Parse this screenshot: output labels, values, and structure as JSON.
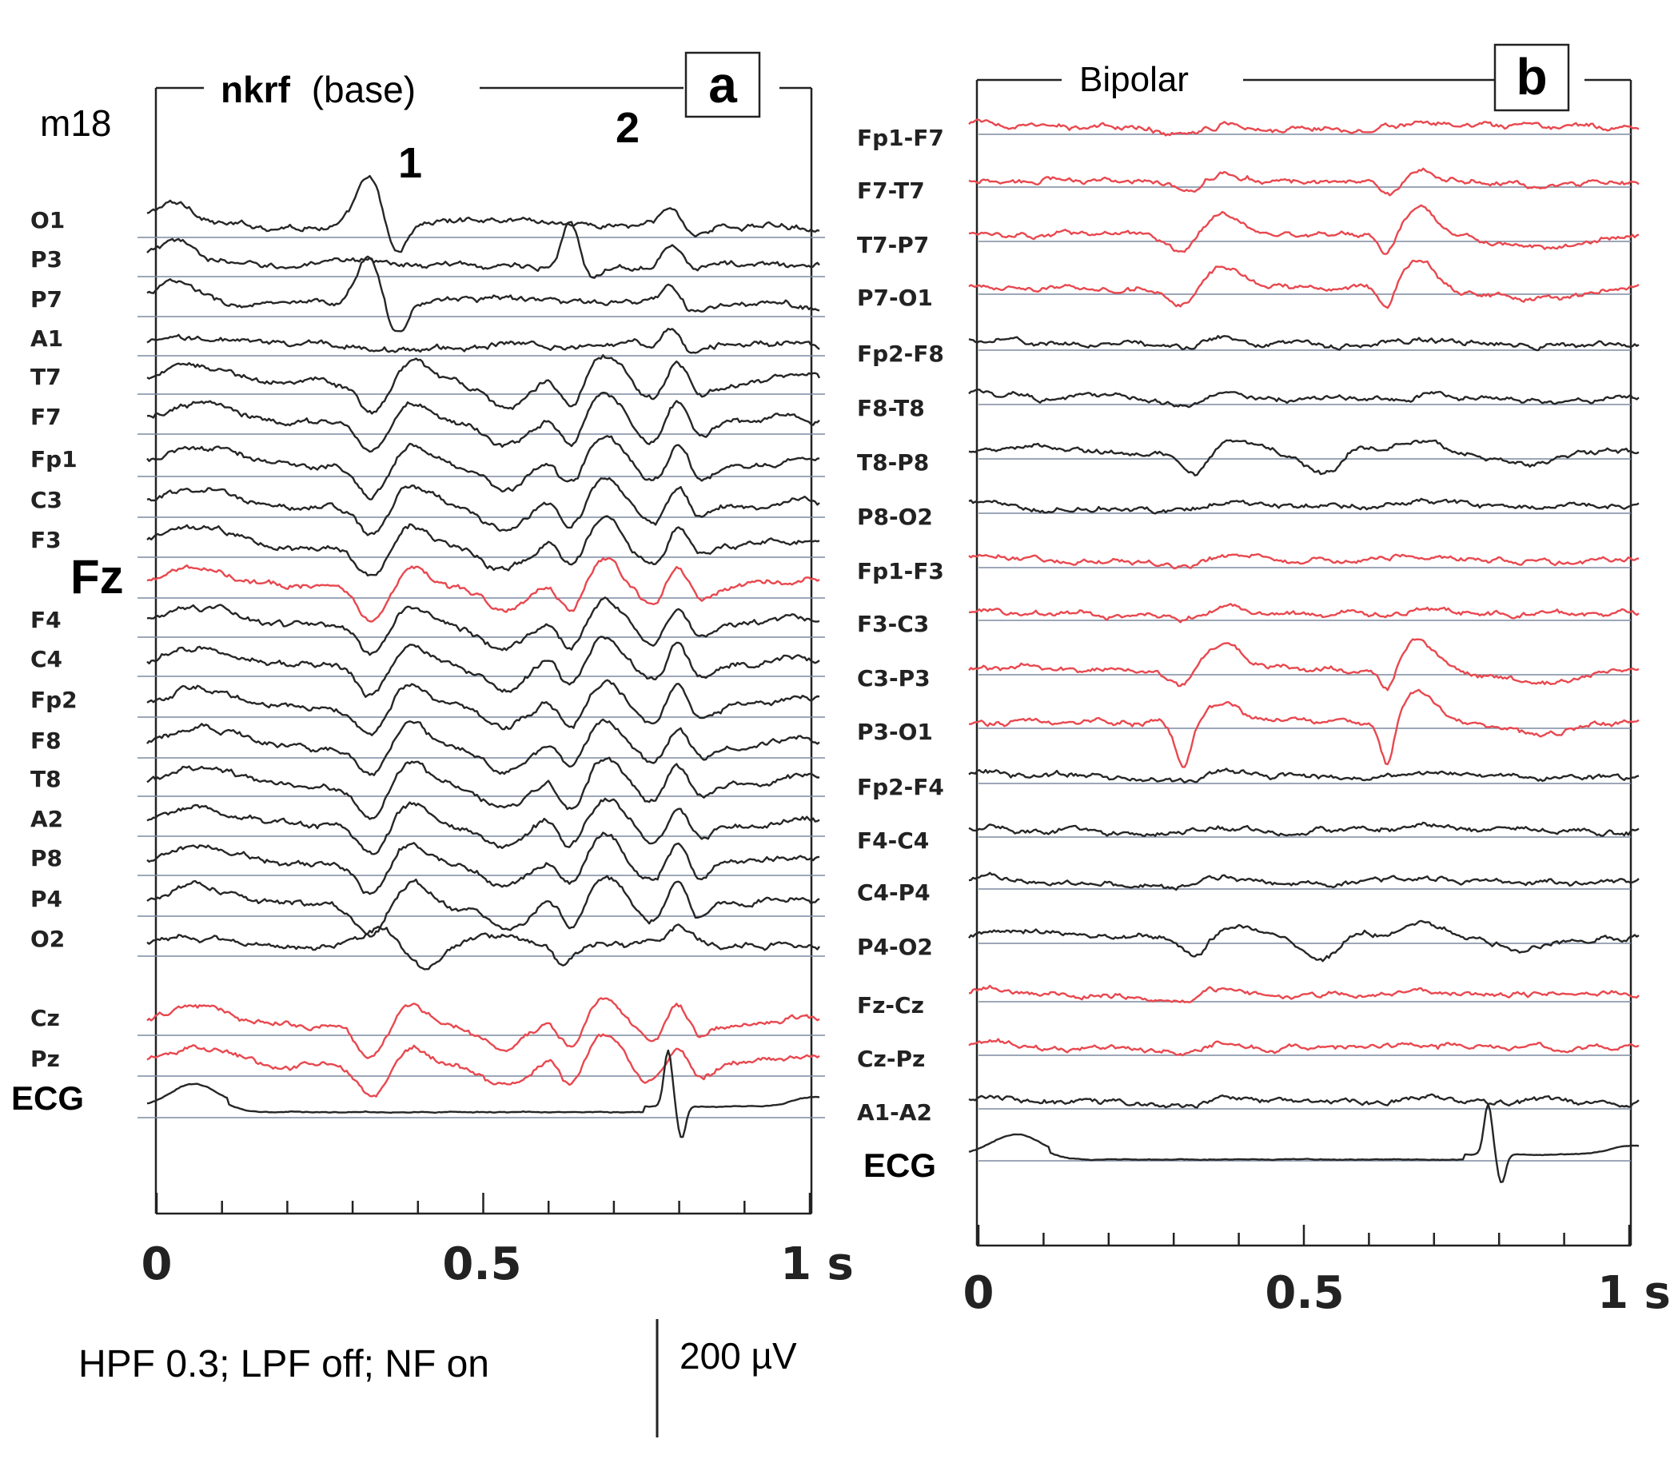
{
  "colors": {
    "trace": "#262626",
    "highlight": "#e8484f",
    "baseline": "#7d8aa0",
    "frame": "#222222"
  },
  "chart_data": [
    {
      "type": "line",
      "panel_letter": "a",
      "title_bold": "nkrf",
      "title_rest": "(base)",
      "subject": "m18",
      "peak_labels": [
        {
          "label": "1",
          "x": 0.33
        },
        {
          "label": "2",
          "x": 0.63
        }
      ],
      "xlim": [
        0,
        1
      ],
      "xticks": [
        "0",
        "0.5",
        "1 s"
      ],
      "filter_note": "HPF 0.3; LPF off;  NF on",
      "scale_bar_label": "200 µV",
      "channels": [
        {
          "name": "O1",
          "highlight": false,
          "family": "occ1"
        },
        {
          "name": "P3",
          "highlight": false,
          "family": "occ2"
        },
        {
          "name": "P7",
          "highlight": false,
          "family": "occ1"
        },
        {
          "name": "A1",
          "highlight": false,
          "family": "flat"
        },
        {
          "name": "T7",
          "highlight": false,
          "family": "front"
        },
        {
          "name": "F7",
          "highlight": false,
          "family": "front"
        },
        {
          "name": "Fp1",
          "highlight": false,
          "family": "front"
        },
        {
          "name": "C3",
          "highlight": false,
          "family": "front"
        },
        {
          "name": "F3",
          "highlight": false,
          "family": "front"
        },
        {
          "name": "Fz",
          "highlight": true,
          "family": "front",
          "big": true
        },
        {
          "name": "F4",
          "highlight": false,
          "family": "front"
        },
        {
          "name": "C4",
          "highlight": false,
          "family": "front"
        },
        {
          "name": "Fp2",
          "highlight": false,
          "family": "front"
        },
        {
          "name": "F8",
          "highlight": false,
          "family": "front"
        },
        {
          "name": "T8",
          "highlight": false,
          "family": "front"
        },
        {
          "name": "A2",
          "highlight": false,
          "family": "front"
        },
        {
          "name": "P8",
          "highlight": false,
          "family": "front"
        },
        {
          "name": "P4",
          "highlight": false,
          "family": "front"
        },
        {
          "name": "O2",
          "highlight": false,
          "family": "occR"
        },
        {
          "name": "Cz",
          "highlight": true,
          "family": "front",
          "group_gap": true
        },
        {
          "name": "Pz",
          "highlight": true,
          "family": "front"
        },
        {
          "name": "ECG",
          "highlight": false,
          "family": "ecg",
          "large": true
        }
      ]
    },
    {
      "type": "line",
      "panel_letter": "b",
      "title": "Bipolar",
      "xlim": [
        0,
        1
      ],
      "xticks": [
        "0",
        "0.5",
        "1 s"
      ],
      "channels": [
        {
          "name": "Fp1-F7",
          "highlight": true,
          "family": "bflat"
        },
        {
          "name": "F7-T7",
          "highlight": true,
          "family": "bmid"
        },
        {
          "name": "T7-P7",
          "highlight": true,
          "family": "bdeep"
        },
        {
          "name": "P7-O1",
          "highlight": true,
          "family": "bdeep"
        },
        {
          "name": "Fp2-F8",
          "highlight": false,
          "family": "bflat",
          "group_gap": true
        },
        {
          "name": "F8-T8",
          "highlight": false,
          "family": "bflat"
        },
        {
          "name": "T8-P8",
          "highlight": false,
          "family": "bR"
        },
        {
          "name": "P8-O2",
          "highlight": false,
          "family": "bflat"
        },
        {
          "name": "Fp1-F3",
          "highlight": true,
          "family": "bflat",
          "group_gap": true
        },
        {
          "name": "F3-C3",
          "highlight": true,
          "family": "bflat"
        },
        {
          "name": "C3-P3",
          "highlight": true,
          "family": "bdeep"
        },
        {
          "name": "P3-O1",
          "highlight": true,
          "family": "bspike"
        },
        {
          "name": "Fp2-F4",
          "highlight": false,
          "family": "bflat",
          "group_gap": true
        },
        {
          "name": "F4-C4",
          "highlight": false,
          "family": "bflat"
        },
        {
          "name": "C4-P4",
          "highlight": false,
          "family": "bflat"
        },
        {
          "name": "P4-O2",
          "highlight": false,
          "family": "bR"
        },
        {
          "name": "Fz-Cz",
          "highlight": true,
          "family": "bflat",
          "group_gap": true
        },
        {
          "name": "Cz-Pz",
          "highlight": true,
          "family": "bflat"
        },
        {
          "name": "A1-A2",
          "highlight": false,
          "family": "bflat"
        },
        {
          "name": "ECG",
          "highlight": false,
          "family": "ecg",
          "large": true
        }
      ]
    }
  ]
}
